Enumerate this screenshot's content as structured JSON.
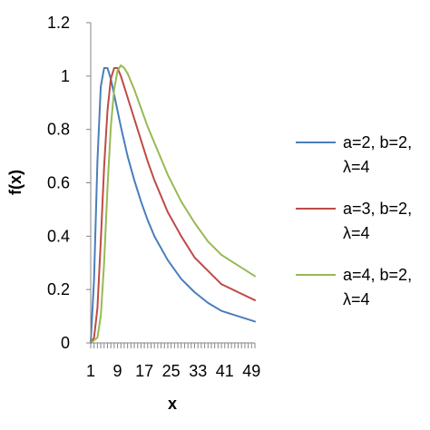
{
  "chart_data": {
    "type": "line",
    "title": "",
    "xlabel": "x",
    "ylabel": "f(x)",
    "x_tick_labels": [
      "1",
      "9",
      "17",
      "25",
      "33",
      "41",
      "49"
    ],
    "y_tick_labels": [
      "0",
      "0.2",
      "0.4",
      "0.6",
      "0.8",
      "1",
      "1.2"
    ],
    "xlim": [
      1,
      50
    ],
    "ylim": [
      0,
      1.2
    ],
    "grid": false,
    "legend_position": "right",
    "series": [
      {
        "name_line1": "a=2, b=2,",
        "name_line2": "λ=4",
        "color": "#4a7ebb",
        "x": [
          1,
          2,
          3,
          4,
          5,
          6,
          7,
          8,
          9,
          10,
          12,
          14,
          16,
          18,
          20,
          24,
          28,
          32,
          36,
          40,
          45,
          50
        ],
        "y": [
          0.0,
          0.24,
          0.68,
          0.96,
          1.03,
          1.03,
          0.99,
          0.93,
          0.87,
          0.81,
          0.7,
          0.61,
          0.53,
          0.46,
          0.4,
          0.31,
          0.24,
          0.19,
          0.15,
          0.12,
          0.1,
          0.08
        ]
      },
      {
        "name_line1": "a=3, b=2,",
        "name_line2": "λ=4",
        "color": "#be4b48",
        "x": [
          1,
          2,
          3,
          4,
          5,
          6,
          7,
          8,
          9,
          10,
          11,
          12,
          14,
          16,
          18,
          20,
          24,
          28,
          32,
          36,
          40,
          45,
          50
        ],
        "y": [
          0.0,
          0.02,
          0.13,
          0.38,
          0.66,
          0.87,
          0.99,
          1.03,
          1.03,
          1.0,
          0.96,
          0.92,
          0.84,
          0.76,
          0.68,
          0.61,
          0.49,
          0.4,
          0.32,
          0.27,
          0.22,
          0.19,
          0.16
        ]
      },
      {
        "name_line1": "a=4, b=2,",
        "name_line2": "λ=4",
        "color": "#98b954",
        "x": [
          1,
          3,
          4,
          5,
          6,
          7,
          8,
          9,
          10,
          11,
          12,
          13,
          14,
          16,
          18,
          20,
          24,
          28,
          32,
          36,
          40,
          45,
          50
        ],
        "y": [
          0.0,
          0.02,
          0.1,
          0.3,
          0.58,
          0.81,
          0.95,
          1.02,
          1.04,
          1.03,
          1.01,
          0.98,
          0.95,
          0.88,
          0.81,
          0.75,
          0.63,
          0.53,
          0.45,
          0.38,
          0.33,
          0.29,
          0.25
        ]
      }
    ]
  }
}
